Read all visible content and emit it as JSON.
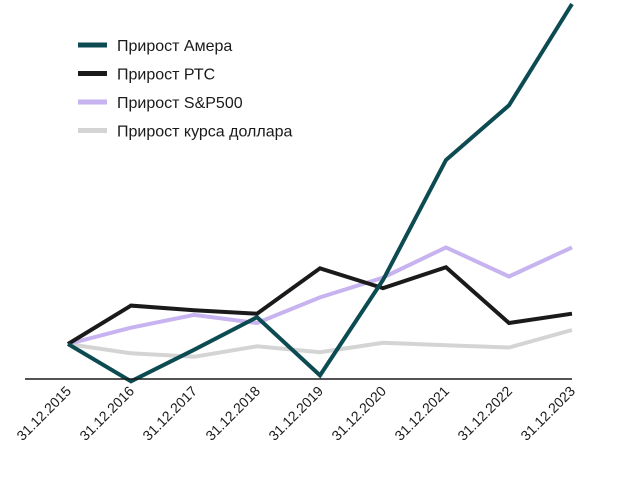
{
  "chart_data": {
    "type": "line",
    "title": "",
    "xlabel": "",
    "ylabel": "",
    "x": [
      "31.12.2015",
      "31.12.2016",
      "31.12.2017",
      "31.12.2018",
      "31.12.2019",
      "31.12.2020",
      "31.12.2021",
      "31.12.2022",
      "31.12.2023"
    ],
    "ylim": [
      -10,
      300
    ],
    "legend_position": "top-left",
    "series": [
      {
        "name": "Прирост Амера",
        "color": "#0d4b52",
        "values": [
          0,
          -32,
          -5,
          23,
          -27,
          55,
          158,
          205,
          292
        ]
      },
      {
        "name": "Прирост РТС",
        "color": "#1a1a1a",
        "values": [
          0,
          33,
          29,
          26,
          65,
          48,
          66,
          18,
          26
        ]
      },
      {
        "name": "Прирост S&P500",
        "color": "#c6b3f0",
        "values": [
          0,
          14,
          25,
          18,
          40,
          57,
          83,
          58,
          83
        ]
      },
      {
        "name": "Прирост курса доллара",
        "color": "#d4d4d4",
        "values": [
          0,
          -8,
          -11,
          -2,
          -7,
          1,
          -1,
          -3,
          12
        ]
      }
    ],
    "baseline_color": "#1a1a1a"
  }
}
